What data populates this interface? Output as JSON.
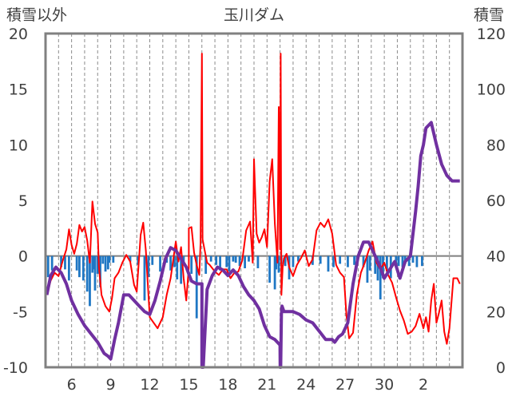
{
  "chart_data": {
    "type": "line",
    "title": "玉川ダム",
    "ylabel_left": "積雪以外",
    "ylabel_right": "積雪",
    "ylim_left": [
      -10,
      20
    ],
    "ylim_right": [
      0,
      120
    ],
    "yticks_left": [
      "-10",
      "-5",
      "0",
      "5",
      "10",
      "15",
      "20"
    ],
    "yticks_right": [
      "0",
      "20",
      "40",
      "60",
      "80",
      "100",
      "120"
    ],
    "xlim": [
      4,
      36
    ],
    "x_tick_values": [
      6,
      9,
      12,
      15,
      18,
      21,
      24,
      27,
      30,
      33
    ],
    "xticks": [
      "6",
      "9",
      "12",
      "15",
      "18",
      "21",
      "24",
      "27",
      "30",
      "2"
    ],
    "grid": "vertical-dashed-daily",
    "colors": {
      "temperature": "#ff0000",
      "snow_depth": "#7030a0",
      "precipitation": "#1f77c4",
      "frame": "#808080"
    },
    "series": [
      {
        "role": "temperature",
        "axis": "left",
        "x": [
          4.1,
          4.4,
          4.7,
          5.0,
          5.3,
          5.6,
          5.8,
          6.0,
          6.2,
          6.4,
          6.6,
          6.8,
          7.0,
          7.2,
          7.4,
          7.6,
          7.8,
          8.0,
          8.1,
          8.3,
          8.6,
          8.9,
          9.1,
          9.3,
          9.6,
          9.9,
          10.2,
          10.5,
          10.8,
          11.0,
          11.3,
          11.5,
          11.7,
          12.0,
          12.3,
          12.6,
          13.0,
          13.3,
          13.6,
          14.0,
          14.2,
          14.4,
          14.6,
          14.8,
          15.0,
          15,
          15.2,
          15.4,
          15.6,
          15.8,
          15.9,
          16.0,
          16.05,
          16.2,
          16.4,
          16.6,
          16.8,
          17.0,
          17.3,
          17.6,
          17.9,
          18.2,
          18.5,
          18.8,
          19.1,
          19.4,
          19.7,
          19.9,
          20.0,
          20.2,
          20.4,
          20.6,
          20.8,
          21.0,
          21.2,
          21.4,
          21.6,
          21.8,
          21.9,
          22.0,
          22.05,
          22.1,
          22.2,
          22.3,
          22.5,
          22.7,
          23.0,
          23.3,
          23.6,
          23.9,
          24.2,
          24.5,
          24.8,
          25.1,
          25.4,
          25.7,
          26.0,
          26.3,
          26.6,
          26.9,
          27.1,
          27.3,
          27.6,
          27.9,
          28.2,
          28.5,
          28.8,
          29.1,
          29.4,
          29.7,
          30.0,
          30.3,
          30.6,
          30.9,
          31.2,
          31.5,
          31.8,
          32.1,
          32.4,
          32.7,
          33.0,
          33.2,
          33.4,
          33.6,
          33.8,
          34.0,
          34.2,
          34.4,
          34.6,
          34.8,
          35.0,
          35.3,
          35.6,
          35.8
        ],
        "y": [
          -3.5,
          -2.2,
          -1.5,
          -1.8,
          -0.5,
          0.6,
          2.4,
          1.0,
          0.2,
          1.1,
          2.8,
          2.2,
          2.6,
          1.4,
          -0.6,
          4.9,
          2.9,
          2.1,
          -1.0,
          -3.5,
          -4.5,
          -5.0,
          -3.8,
          -2.0,
          -1.5,
          -0.6,
          0.1,
          -0.5,
          -2.6,
          -3.2,
          1.9,
          3.0,
          0.5,
          -5.5,
          -6.0,
          -6.5,
          -5.5,
          -3.5,
          -2.0,
          1.3,
          -0.5,
          0.8,
          -2.0,
          -4.0,
          -1.0,
          2.5,
          2.6,
          0.3,
          -0.8,
          -1.7,
          1.2,
          18.2,
          1.5,
          0.6,
          -0.6,
          -0.8,
          -1.1,
          -1.4,
          -1.7,
          -1.2,
          -1.2,
          -2.0,
          -1.5,
          -1.4,
          -0.4,
          2.3,
          3.1,
          -0.6,
          8.7,
          2.0,
          1.2,
          1.7,
          2.4,
          0.8,
          6.7,
          8.7,
          2.9,
          -0.6,
          13.4,
          0.6,
          18.2,
          -3.5,
          -1.0,
          -0.2,
          0.2,
          -1.0,
          -1.8,
          -0.8,
          -0.2,
          0.5,
          -0.9,
          -0.3,
          2.3,
          3.0,
          2.6,
          3.3,
          2.0,
          -0.8,
          -1.5,
          -1.9,
          -5.4,
          -7.4,
          -6.9,
          -3.4,
          -1.5,
          -0.6,
          0.5,
          1.3,
          -0.6,
          -1.2,
          -0.6,
          -1.7,
          -2.4,
          -3.7,
          -4.9,
          -5.8,
          -7.0,
          -6.8,
          -6.3,
          -5.2,
          -6.5,
          -5.5,
          -6.8,
          -4.0,
          -2.5,
          -6.0,
          -5.1,
          -4.0,
          -6.8,
          -7.9,
          -6.5,
          -2.0,
          -2.0,
          -2.5
        ]
      },
      {
        "role": "snow_depth",
        "axis": "right",
        "x": [
          4.1,
          4.4,
          4.8,
          5.2,
          5.6,
          6.0,
          6.5,
          7.0,
          7.5,
          8.0,
          8.5,
          8.8,
          9.0,
          9.3,
          9.6,
          10.0,
          10.4,
          10.8,
          11.2,
          11.6,
          12.0,
          12.4,
          12.8,
          13.2,
          13.6,
          14.0,
          14.4,
          14.8,
          15.2,
          15.6,
          16.0,
          16.0,
          16.1,
          16.4,
          16.8,
          17.2,
          17.6,
          18.0,
          18.4,
          18.8,
          19.2,
          19.6,
          20.0,
          20.4,
          20.8,
          21.2,
          21.6,
          22.0,
          22.01,
          22.05,
          22.1,
          22.15,
          22.3,
          22.6,
          23.0,
          23.5,
          24.0,
          24.5,
          25.0,
          25.5,
          26.0,
          26.2,
          26.5,
          26.8,
          27.2,
          27.6,
          28.0,
          28.4,
          28.8,
          29.2,
          29.6,
          30.0,
          30.4,
          30.8,
          31.2,
          31.6,
          32.0,
          32.4,
          32.6,
          32.8,
          33.0,
          33.2,
          33.6,
          34.0,
          34.4,
          34.8,
          35.2,
          35.6,
          35.8
        ],
        "y": [
          26,
          33,
          36,
          34,
          30,
          24,
          19,
          15,
          12,
          9,
          5,
          4,
          3,
          10,
          16,
          26,
          26,
          24,
          22,
          20,
          19,
          24,
          31,
          39,
          43,
          42,
          39,
          36,
          31,
          30,
          30,
          0,
          0,
          28,
          33,
          36,
          35,
          33,
          35,
          33,
          29,
          26,
          24,
          21,
          15,
          11,
          10,
          8,
          0,
          0,
          19,
          22,
          20,
          20,
          20,
          19,
          17,
          16,
          13,
          10,
          10,
          9,
          11,
          12,
          16,
          30,
          40,
          45,
          45,
          41,
          37,
          32,
          35,
          38,
          32,
          38,
          40,
          56,
          65,
          76,
          80,
          86,
          88,
          80,
          73,
          69,
          67,
          67,
          67
        ]
      },
      {
        "role": "precipitation",
        "axis": "left",
        "kind": "bar",
        "x": [
          4.2,
          4.5,
          5.2,
          5.5,
          5.8,
          6.4,
          6.6,
          6.9,
          7.2,
          7.4,
          7.6,
          7.7,
          7.8,
          8.0,
          8.1,
          8.2,
          8.4,
          8.6,
          8.8,
          8.9,
          9.2,
          10.5,
          11.1,
          11.6,
          11.9,
          12.2,
          12.8,
          13.3,
          13.6,
          13.9,
          14.1,
          14.4,
          14.6,
          15.2,
          15.6,
          16.3,
          16.7,
          17.1,
          17.4,
          17.9,
          18.1,
          18.4,
          18.6,
          18.9,
          19.3,
          19.6,
          20.3,
          21.2,
          21.6,
          21.7,
          21.9,
          22.1,
          22.4,
          22.7,
          23.0,
          23.4,
          24.5,
          25.1,
          25.7,
          26.1,
          26.6,
          27.2,
          27.7,
          27.9,
          28.4,
          28.7,
          28.9,
          29.3,
          29.5,
          29.7,
          29.9,
          30.2,
          30.5,
          30.9,
          31.1,
          31.4,
          31.6,
          31.9,
          32.2,
          32.5,
          32.9
        ],
        "y": [
          -1.9,
          -1.3,
          -1.0,
          -1.2,
          -2.2,
          -1.3,
          -1.9,
          -2.2,
          -3.2,
          -4.5,
          -1.5,
          -1.2,
          -3.1,
          -1.6,
          -1.0,
          -2.8,
          -0.7,
          -1.4,
          -1.2,
          -0.6,
          -0.6,
          -0.5,
          -0.8,
          -4.0,
          -1.9,
          -0.8,
          -1.4,
          -0.6,
          -1.3,
          -1.0,
          -2.1,
          -2.5,
          -0.7,
          -1.6,
          -5.6,
          -1.6,
          -0.5,
          -0.8,
          -1.3,
          -1.0,
          -1.4,
          -0.5,
          -0.6,
          -0.9,
          -1.1,
          -0.5,
          -1.1,
          -2.4,
          -3.0,
          -1.2,
          -1.5,
          -0.7,
          -0.9,
          -2.1,
          -1.0,
          -0.5,
          -0.8,
          -0.7,
          -1.4,
          -1.0,
          -0.7,
          -1.0,
          -0.8,
          -0.6,
          -1.0,
          -2.4,
          -1.3,
          -1.6,
          -2.2,
          -3.9,
          -2.0,
          -1.4,
          -2.0,
          -1.0,
          -0.9,
          -1.0,
          -0.7,
          -0.9,
          -0.6,
          -1.0,
          -0.9
        ]
      }
    ]
  }
}
